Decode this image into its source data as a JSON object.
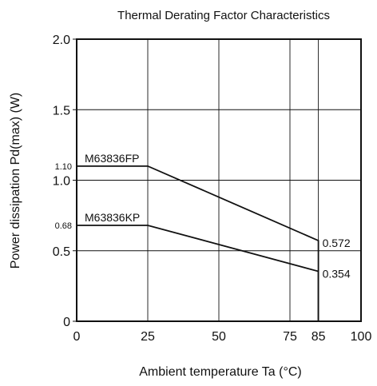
{
  "chart_data": {
    "type": "line",
    "title": "Thermal Derating Factor Characteristics",
    "xlabel": "Ambient temperature  Ta (°C)",
    "ylabel": "Power dissipation  Pd(max) (W)",
    "xlim": [
      0,
      100
    ],
    "ylim": [
      0,
      2.0
    ],
    "x_ticks": [
      "0",
      "25",
      "50",
      "75",
      "85",
      "100"
    ],
    "y_ticks": [
      "0",
      "0.5",
      "1.0",
      "1.5",
      "2.0"
    ],
    "extra_y_ticks": [
      "1.10",
      "0.68"
    ],
    "grid": true,
    "series": [
      {
        "name": "M63836FP",
        "x": [
          0,
          25,
          85,
          85
        ],
        "y": [
          1.1,
          1.1,
          0.572,
          0
        ],
        "end_label": "0.572"
      },
      {
        "name": "M63836KP",
        "x": [
          0,
          25,
          85,
          85
        ],
        "y": [
          0.68,
          0.68,
          0.354,
          0
        ],
        "end_label": "0.354"
      }
    ]
  }
}
